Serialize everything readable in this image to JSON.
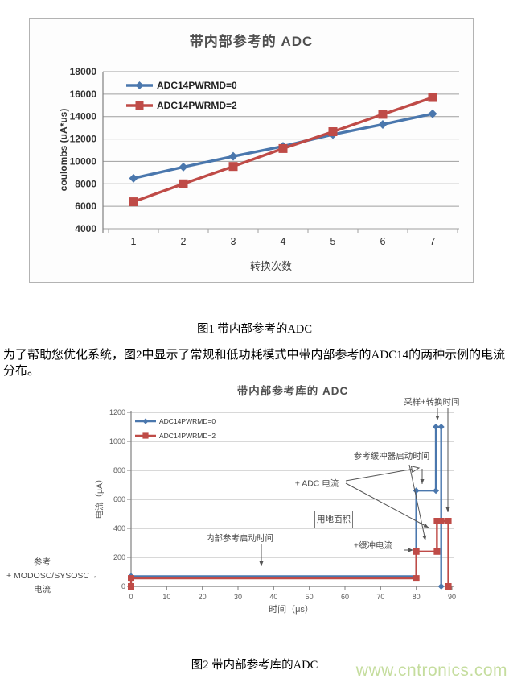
{
  "colors": {
    "series_pwrmd0": "#4a77ad",
    "series_pwrmd2": "#bf4b47",
    "grid_fig1": "#9e9e9e",
    "grid_fig2": "#b2b2b2",
    "axis": "#808080",
    "chart_title": "#4f4f4f",
    "annotation": "#4a4a4a",
    "watermark": "#c5dd9e"
  },
  "chart_data": [
    {
      "type": "line",
      "title": "带内部参考的 ADC",
      "xlabel": "转换次数",
      "ylabel": "coulombs (uA*us)",
      "categories": [
        "1",
        "2",
        "3",
        "4",
        "5",
        "6",
        "7"
      ],
      "series": [
        {
          "name": "ADC14PWRMD=0",
          "marker": "diamond",
          "color": "#4a77ad",
          "values": [
            8500,
            9500,
            10450,
            11350,
            12400,
            13300,
            14250
          ]
        },
        {
          "name": "ADC14PWRMD=2",
          "marker": "square",
          "color": "#bf4b47",
          "values": [
            6400,
            8000,
            9550,
            11150,
            12650,
            14200,
            15700
          ]
        }
      ],
      "ylim": [
        4000,
        18000
      ],
      "ytick_step": 2000,
      "legend_position": "top-left",
      "grid": "horizontal"
    },
    {
      "type": "line-step",
      "title": "带内部参考库的 ADC",
      "xlabel": "时间（μs）",
      "ylabel": "电流（μA）",
      "xlim": [
        0,
        90
      ],
      "xtick_step": 10,
      "ylim": [
        0,
        1200
      ],
      "ytick_step": 200,
      "series": [
        {
          "name": "ADC14PWRMD=0",
          "marker": "diamond",
          "color": "#4a77ad",
          "points": [
            [
              0,
              70
            ],
            [
              80,
              70
            ],
            [
              80,
              660
            ],
            [
              85.5,
              660
            ],
            [
              85.5,
              1100
            ],
            [
              87,
              1100
            ],
            [
              87,
              0
            ]
          ],
          "marker_points": [
            [
              0,
              70
            ],
            [
              80,
              660
            ],
            [
              85.5,
              660
            ],
            [
              85.5,
              1100
            ],
            [
              87,
              1100
            ],
            [
              87,
              0
            ]
          ]
        },
        {
          "name": "ADC14PWRMD=2",
          "marker": "square",
          "color": "#bf4b47",
          "points": [
            [
              0,
              0
            ],
            [
              0,
              55
            ],
            [
              80,
              55
            ],
            [
              80,
              240
            ],
            [
              85.8,
              240
            ],
            [
              85.8,
              450
            ],
            [
              89,
              450
            ],
            [
              89,
              0
            ]
          ],
          "marker_points": [
            [
              0,
              0
            ],
            [
              0,
              55
            ],
            [
              80,
              55
            ],
            [
              80,
              240
            ],
            [
              85.8,
              240
            ],
            [
              85.8,
              450
            ],
            [
              87,
              450
            ],
            [
              89,
              450
            ],
            [
              89,
              0
            ]
          ]
        }
      ],
      "legend_position": "top-left",
      "grid": "horizontal",
      "annotations": {
        "sampling": "采样+转换时间",
        "ref_buffer": "参考缓冲器启动时间",
        "adc_current": "+ ADC 电流",
        "area_box": "用地面积",
        "internal_ref": "内部参考启动时间",
        "buffer_current": "+缓冲电流",
        "left1": "参考",
        "left2": "+ MODOSC/SYSOSC→",
        "left3": "电流"
      }
    }
  ],
  "captions": {
    "figure1": "图1 带内部参考的ADC",
    "figure2": "图2 带内部参考库的ADC"
  },
  "paragraph": {
    "text": "为了帮助您优化系统，图2中显示了常规和低功耗模式中带内部参考的ADC14的两种示例的电流分布。"
  },
  "watermark": {
    "text": "www.cntronics.com"
  }
}
